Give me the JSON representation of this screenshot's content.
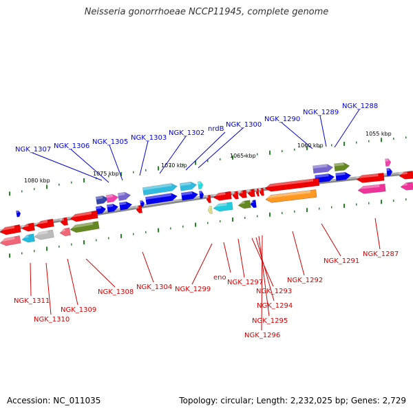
{
  "header": {
    "title": "Neisseria gonorrhoeae NCCP11945, complete genome"
  },
  "footer": {
    "accession": "Accession: NC_011035",
    "topology": "Topology: circular; Length: 2,232,025 bp; Genes: 2,729"
  },
  "colors": {
    "forward_label": "#0000cc",
    "reverse_label": "#cc0000",
    "backbone": "#8a8a8a",
    "tick": "#228822"
  },
  "scale_labels": [
    "1080 kbp",
    "1075 kbp",
    "1070 kbp",
    "1065 kbp",
    "1060 kbp",
    "1055 kbp"
  ],
  "forward_genes": [
    "NGK_1307",
    "NGK_1306",
    "NGK_1305",
    "NGK_1303",
    "NGK_1302",
    "nrdB",
    "NGK_1300",
    "NGK_1290",
    "NGK_1289",
    "NGK_1288"
  ],
  "reverse_genes": [
    "NGK_1311",
    "NGK_1310",
    "NGK_1309",
    "NGK_1308",
    "NGK_1304",
    "NGK_1299",
    "eno",
    "NGK_1297",
    "NGK_1293",
    "NGK_1294",
    "NGK_1295",
    "NGK_1296",
    "NGK_1292",
    "NGK_1291",
    "NGK_1287"
  ]
}
